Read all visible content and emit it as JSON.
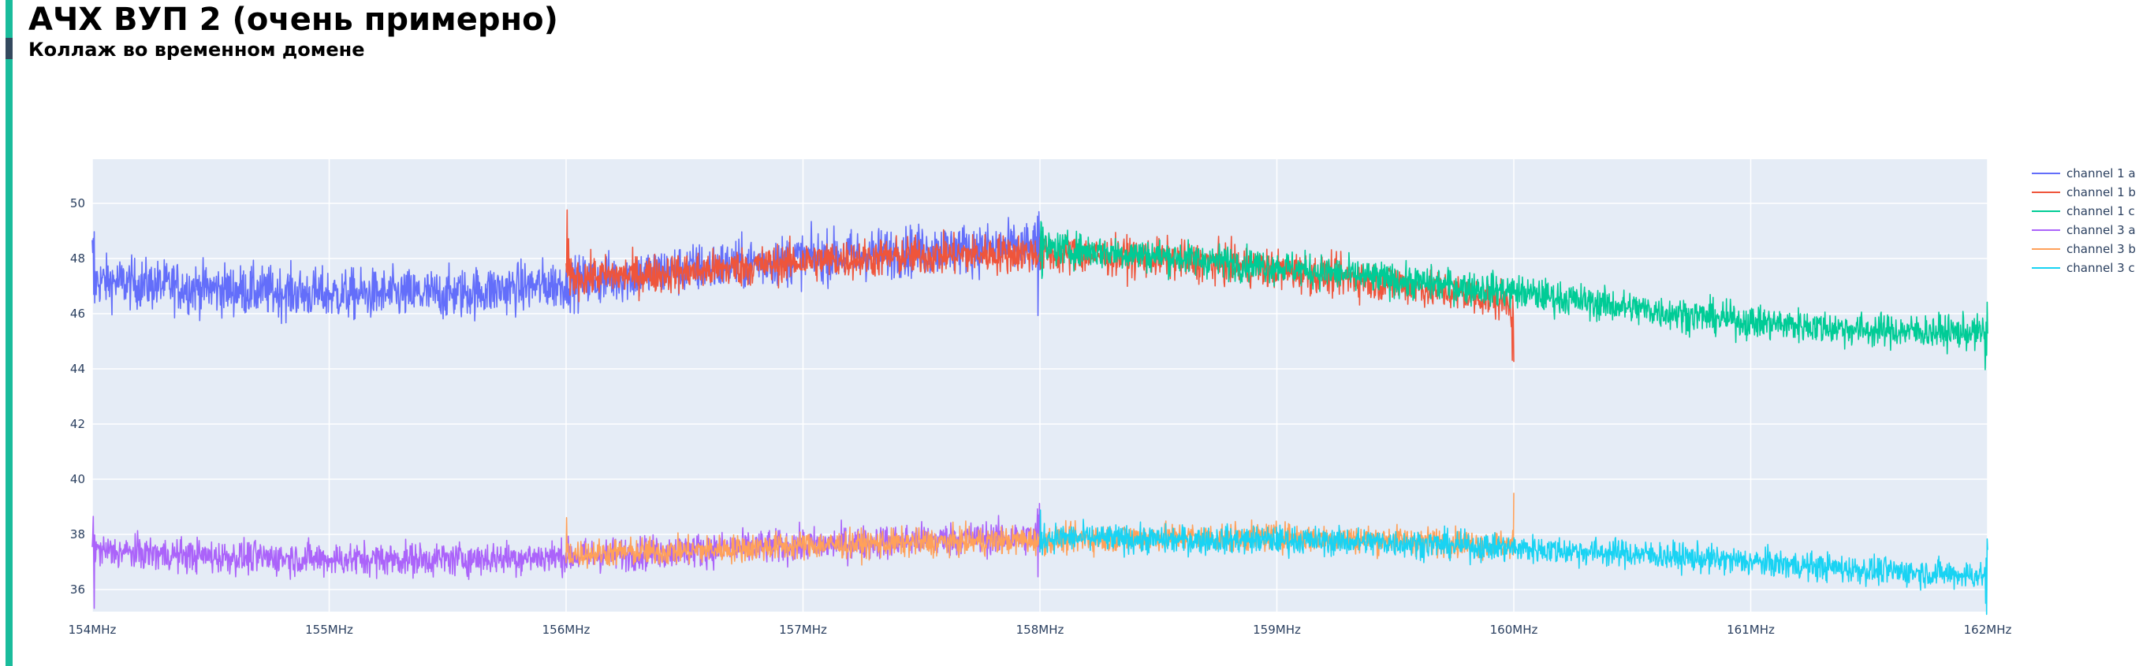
{
  "header": {
    "title": "АЧХ ВУП 2 (очень примерно)",
    "subtitle": "Коллаж во временном домене"
  },
  "colors": {
    "accent": "#1abc9c",
    "accent_mark": "#34495e",
    "plot_bg": "#e5ecf6",
    "grid": "#ffffff",
    "tick_text": "#2a3f5f"
  },
  "chart_data": {
    "type": "line",
    "title": "",
    "xlabel": "",
    "ylabel": "",
    "xlim": [
      154,
      162
    ],
    "ylim": [
      35.2,
      51.6
    ],
    "x_tick_values": [
      154,
      155,
      156,
      157,
      158,
      159,
      160,
      161,
      162
    ],
    "x_tick_labels": [
      "154MHz",
      "155MHz",
      "156MHz",
      "157MHz",
      "158MHz",
      "159MHz",
      "160MHz",
      "161MHz",
      "162MHz"
    ],
    "y_tick_values": [
      36,
      38,
      40,
      42,
      44,
      46,
      48,
      50
    ],
    "y_tick_labels": [
      "36",
      "38",
      "40",
      "42",
      "44",
      "46",
      "48",
      "50"
    ],
    "grid": true,
    "legend_position": "top-right",
    "noise_note": "Series are dense noisy traces; values listed are the approximate mean levels.",
    "series": [
      {
        "name": "channel 1 a",
        "color": "#636efa",
        "x": [
          154,
          154.5,
          155,
          155.5,
          156,
          156.5,
          157,
          157.5,
          158
        ],
        "y": [
          47.2,
          46.9,
          46.7,
          46.7,
          47.1,
          47.6,
          48.0,
          48.3,
          48.4
        ],
        "noise": 0.45
      },
      {
        "name": "channel 1 b",
        "color": "#ef553b",
        "x": [
          156,
          156.5,
          157,
          157.5,
          158,
          158.5,
          159,
          159.5,
          160
        ],
        "y": [
          47.3,
          47.5,
          47.9,
          48.1,
          48.2,
          48.0,
          47.6,
          47.1,
          46.4
        ],
        "noise": 0.35
      },
      {
        "name": "channel 1 c",
        "color": "#00cc96",
        "x": [
          158,
          158.5,
          159,
          159.5,
          160,
          160.5,
          161,
          161.5,
          162
        ],
        "y": [
          48.4,
          48.1,
          47.7,
          47.2,
          46.8,
          46.2,
          45.7,
          45.4,
          45.3
        ],
        "noise": 0.3
      },
      {
        "name": "channel 3 a",
        "color": "#ab63fa",
        "x": [
          154,
          154.5,
          155,
          155.5,
          156,
          156.5,
          157,
          157.5,
          158
        ],
        "y": [
          37.4,
          37.2,
          37.1,
          37.1,
          37.2,
          37.4,
          37.6,
          37.8,
          37.9
        ],
        "noise": 0.3
      },
      {
        "name": "channel 3 b",
        "color": "#ffa15a",
        "x": [
          156,
          156.5,
          157,
          157.5,
          158,
          158.5,
          159,
          159.5,
          160
        ],
        "y": [
          37.3,
          37.4,
          37.6,
          37.7,
          37.8,
          37.9,
          37.9,
          37.8,
          37.6
        ],
        "noise": 0.25
      },
      {
        "name": "channel 3 c",
        "color": "#19d3f3",
        "x": [
          158,
          158.5,
          159,
          159.5,
          160,
          160.5,
          161,
          161.5,
          162
        ],
        "y": [
          37.9,
          37.8,
          37.8,
          37.7,
          37.5,
          37.3,
          37.0,
          36.7,
          36.5
        ],
        "noise": 0.25
      }
    ]
  }
}
